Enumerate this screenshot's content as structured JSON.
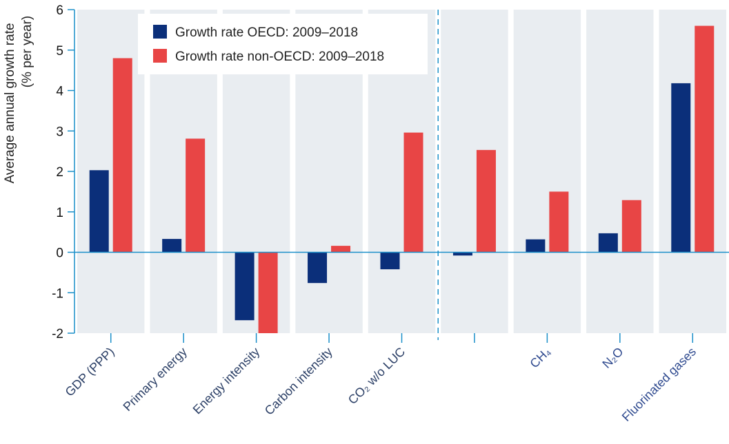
{
  "chart_data": {
    "type": "bar",
    "title": "",
    "ylabel": [
      "Average annual growth rate",
      "(% per year)"
    ],
    "ylim": [
      -2,
      6
    ],
    "yticks": [
      -2,
      -1,
      0,
      1,
      2,
      3,
      4,
      5,
      6
    ],
    "grid": false,
    "legend_position": "top",
    "categories": [
      "GDP (PPP)",
      "Primary energy",
      "Energy intensity",
      "Carbon intensity",
      "CO₂ w/o LUC",
      "",
      "CH₄",
      "N₂O",
      "Fluorinated gases"
    ],
    "series": [
      {
        "name": "Growth rate OECD: 2009–2018",
        "color": "#0b2f7a",
        "values": [
          2.03,
          0.33,
          -1.68,
          -0.76,
          -0.42,
          -0.08,
          0.32,
          0.47,
          4.18
        ]
      },
      {
        "name": "Growth rate non-OECD: 2009–2018",
        "color": "#e84545",
        "values": [
          4.8,
          2.81,
          -2.0,
          0.16,
          2.96,
          2.53,
          1.5,
          1.29,
          5.6
        ]
      }
    ],
    "colors": {
      "panel": "#e9edf1",
      "axis": "#1a8fc9",
      "label_gray": "#2b3f66",
      "label_blue": "#2f4a8f"
    }
  }
}
